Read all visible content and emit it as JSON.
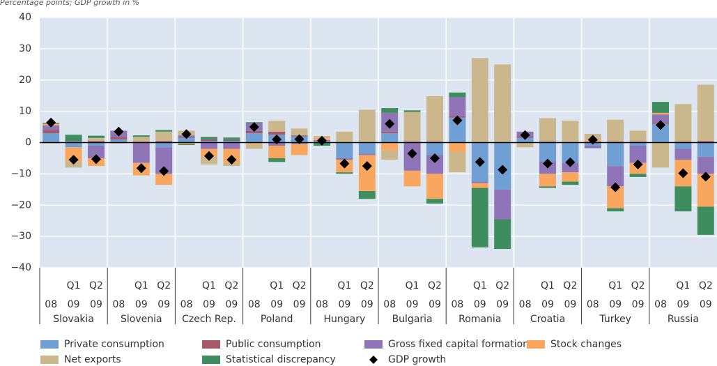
{
  "chart_data": {
    "type": "stacked_bar",
    "title": "Percentage points; GDP growth in %",
    "period_labels": [
      null,
      "Q1",
      "Q2",
      null,
      "Q1",
      "Q2",
      null,
      "Q1",
      "Q2",
      null,
      "Q1",
      "Q2",
      null,
      "Q1",
      "Q2",
      null,
      "Q1",
      "Q2",
      null,
      "Q1",
      "Q2",
      null,
      "Q1",
      "Q2",
      null,
      "Q1",
      "Q2",
      null,
      "Q1",
      "Q2"
    ],
    "year_labels": [
      "08",
      "09",
      "09",
      "08",
      "09",
      "09",
      "08",
      "09",
      "09",
      "08",
      "09",
      "09",
      "08",
      "09",
      "09",
      "08",
      "09",
      "09",
      "08",
      "09",
      "09",
      "08",
      "09",
      "09",
      "08",
      "09",
      "09",
      "08",
      "09",
      "09"
    ],
    "groups": [
      "Slovakia",
      "Slovenia",
      "Czech Rep.",
      "Poland",
      "Hungary",
      "Bulgaria",
      "Romania",
      "Croatia",
      "Turkey",
      "Russia"
    ],
    "series": [
      {
        "name": "Private consumption",
        "color": "#6f9fd3",
        "values": [
          3,
          -1.5,
          -1,
          1,
          0,
          -1.5,
          1.5,
          0.5,
          0.5,
          3,
          2.5,
          2,
          0.5,
          -5,
          -3.5,
          3,
          0,
          -4,
          8,
          -12.5,
          -15,
          1.5,
          -6,
          -6.5,
          -1,
          -7.5,
          -1,
          6,
          -2,
          -4.5
        ]
      },
      {
        "name": "Public consumption",
        "color": "#a65a6c",
        "values": [
          1,
          0.3,
          0.5,
          0.8,
          0.3,
          0.5,
          0.3,
          0.5,
          0.3,
          0.7,
          1,
          0.3,
          0,
          0,
          0,
          0.5,
          0.3,
          0.3,
          0.5,
          0,
          0,
          0.5,
          0.3,
          0,
          0.3,
          0.3,
          0.3,
          0.5,
          0.3,
          0.5
        ]
      },
      {
        "name": "Gross fixed capital formation",
        "color": "#8f75b7",
        "values": [
          1.5,
          0.2,
          -4,
          2,
          -6.5,
          -8.5,
          0.5,
          -2,
          -2,
          2.5,
          -1,
          -0.5,
          0.3,
          -0.5,
          -0.5,
          6,
          -9,
          -6,
          6,
          -0.5,
          -9.5,
          1.5,
          -4,
          -3,
          -0.8,
          -6.5,
          -5.5,
          2.5,
          -3.5,
          -5.5
        ]
      },
      {
        "name": "Stock changes",
        "color": "#f9a65f",
        "values": [
          0.5,
          -4.5,
          -2.5,
          0,
          -4,
          -3.5,
          -0.5,
          -2.5,
          -4.5,
          -0.5,
          -4,
          -3.5,
          0.8,
          -4,
          -11.5,
          -2.5,
          -5,
          -8,
          -3,
          -1.5,
          0,
          0,
          -4,
          -3,
          0.5,
          -7,
          -3.5,
          0.5,
          -8.5,
          -10.5
        ]
      },
      {
        "name": "Net exports",
        "color": "#cbb78c",
        "values": [
          -0.3,
          -2,
          1,
          -0.3,
          1.5,
          3,
          1.5,
          -2.5,
          -1,
          -1.5,
          3.5,
          2.2,
          0.5,
          3.5,
          10.5,
          -3,
          9.5,
          14.5,
          -6.5,
          27,
          25,
          -1.5,
          7.5,
          7,
          2,
          7,
          3.5,
          -8,
          12,
          18
        ]
      },
      {
        "name": "Statistical discrepancy",
        "color": "#3e8d5e",
        "values": [
          0.3,
          2,
          0.7,
          0,
          0.5,
          0.5,
          -0.3,
          0.8,
          0.8,
          0.3,
          -1.2,
          0,
          -1,
          -0.5,
          -2.5,
          1.5,
          0.5,
          -1.5,
          1.5,
          -19,
          -9.5,
          0,
          -0.5,
          -1,
          0,
          -1,
          -1,
          3.5,
          -8,
          -9
        ]
      }
    ],
    "gdp": {
      "name": "GDP growth",
      "color": "#000000",
      "values": [
        6.4,
        -5.5,
        -5.3,
        3.5,
        -8.2,
        -9.1,
        2.7,
        -4.3,
        -5.5,
        5,
        1,
        1.1,
        0.6,
        -6.7,
        -7.5,
        6,
        -3.5,
        -5,
        7.1,
        -6.2,
        -8.7,
        2.4,
        -6.7,
        -6.3,
        0.9,
        -14.3,
        -7,
        5.6,
        -9.8,
        -10.9
      ]
    },
    "ylim": [
      -40,
      40
    ],
    "yticks": [
      {
        "value": -40,
        "label": "−40"
      },
      {
        "value": -30,
        "label": "−30"
      },
      {
        "value": -20,
        "label": "−20"
      },
      {
        "value": -10,
        "label": "−10"
      },
      0,
      10,
      20,
      30,
      40
    ],
    "grid": true,
    "plot_background": "#dde6f0"
  }
}
